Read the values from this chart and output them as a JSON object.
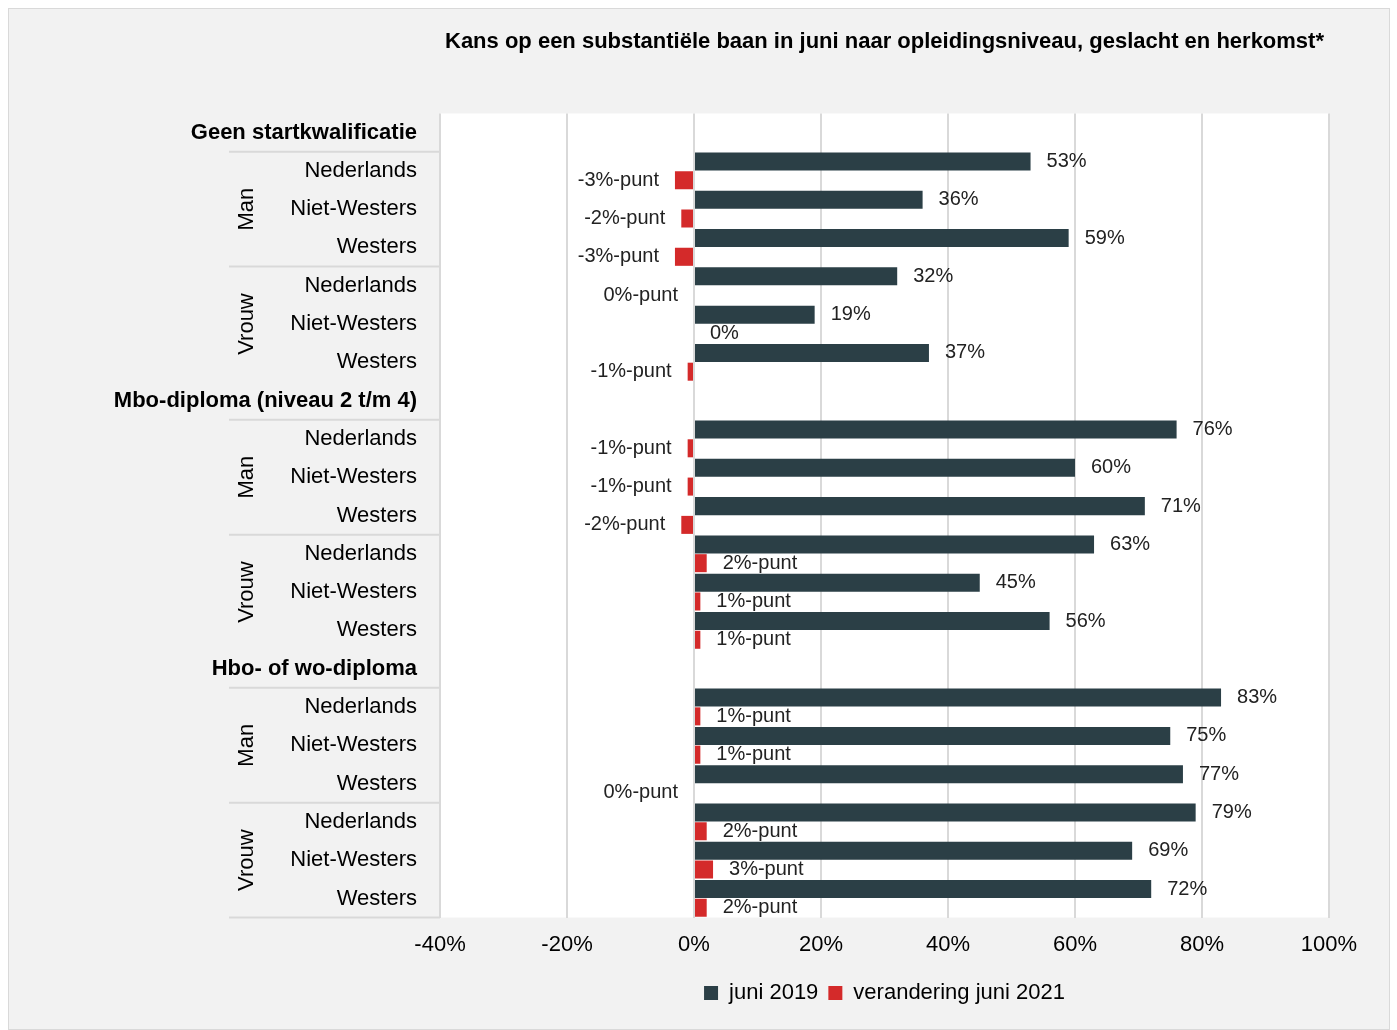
{
  "chart_data": {
    "type": "bar",
    "orientation": "horizontal",
    "title": "Kans op een substantiële baan in juni naar opleidingsniveau, geslacht en herkomst*",
    "categories": [
      "Geen startkwalificatie",
      "Nederlands",
      "Niet-Westers",
      "Westers",
      "Nederlands",
      "Niet-Westers",
      "Westers",
      "Mbo-diploma (niveau 2 t/m 4)",
      "Nederlands",
      "Niet-Westers",
      "Westers",
      "Nederlands",
      "Niet-Westers",
      "Westers",
      "Hbo- of wo-diploma",
      "Nederlands",
      "Niet-Westers",
      "Westers",
      "Nederlands",
      "Niet-Westers",
      "Westers"
    ],
    "series": [
      {
        "name": "juni 2019",
        "color": "#2b3f46",
        "values": [
          null,
          53,
          36,
          59,
          32,
          19,
          37,
          null,
          76,
          60,
          71,
          63,
          45,
          56,
          null,
          83,
          75,
          77,
          79,
          69,
          72
        ],
        "value_labels": [
          null,
          "53%",
          "36%",
          "59%",
          "32%",
          "19%",
          "37%",
          null,
          "76%",
          "60%",
          "71%",
          "63%",
          "45%",
          "56%",
          null,
          "83%",
          "75%",
          "77%",
          "79%",
          "69%",
          "72%"
        ]
      },
      {
        "name": "verandering juni 2021",
        "color": "#d42a2a",
        "values": [
          null,
          -3,
          -2,
          -3,
          0,
          0,
          -1,
          null,
          -1,
          -1,
          -2,
          2,
          1,
          1,
          null,
          1,
          1,
          0,
          2,
          3,
          2
        ],
        "value_labels": [
          null,
          "-3%-punt",
          "-2%-punt",
          "-3%-punt",
          "0%-punt",
          "0%",
          "-1%-punt",
          null,
          "-1%-punt",
          "-1%-punt",
          "-2%-punt",
          "2%-punt",
          "1%-punt",
          "1%-punt",
          null,
          "1%-punt",
          "1%-punt",
          "0%-punt",
          "2%-punt",
          "3%-punt",
          "2%-punt"
        ]
      }
    ],
    "annotations": [
      "Man",
      "Vrouw",
      "Man",
      "Vrouw",
      "Man",
      "Vrouw"
    ],
    "xlim": [
      -40,
      100
    ],
    "xticks": [
      {
        "value": -40,
        "label": "-40%"
      },
      {
        "value": -20,
        "label": "-20%"
      },
      {
        "value": 0,
        "label": "0%"
      },
      {
        "value": 20,
        "label": "20%"
      },
      {
        "value": 40,
        "label": "40%"
      },
      {
        "value": 60,
        "label": "60%"
      },
      {
        "value": 80,
        "label": "80%"
      },
      {
        "value": 100,
        "label": "100%"
      }
    ],
    "grid": "x",
    "legend": "bottom"
  }
}
